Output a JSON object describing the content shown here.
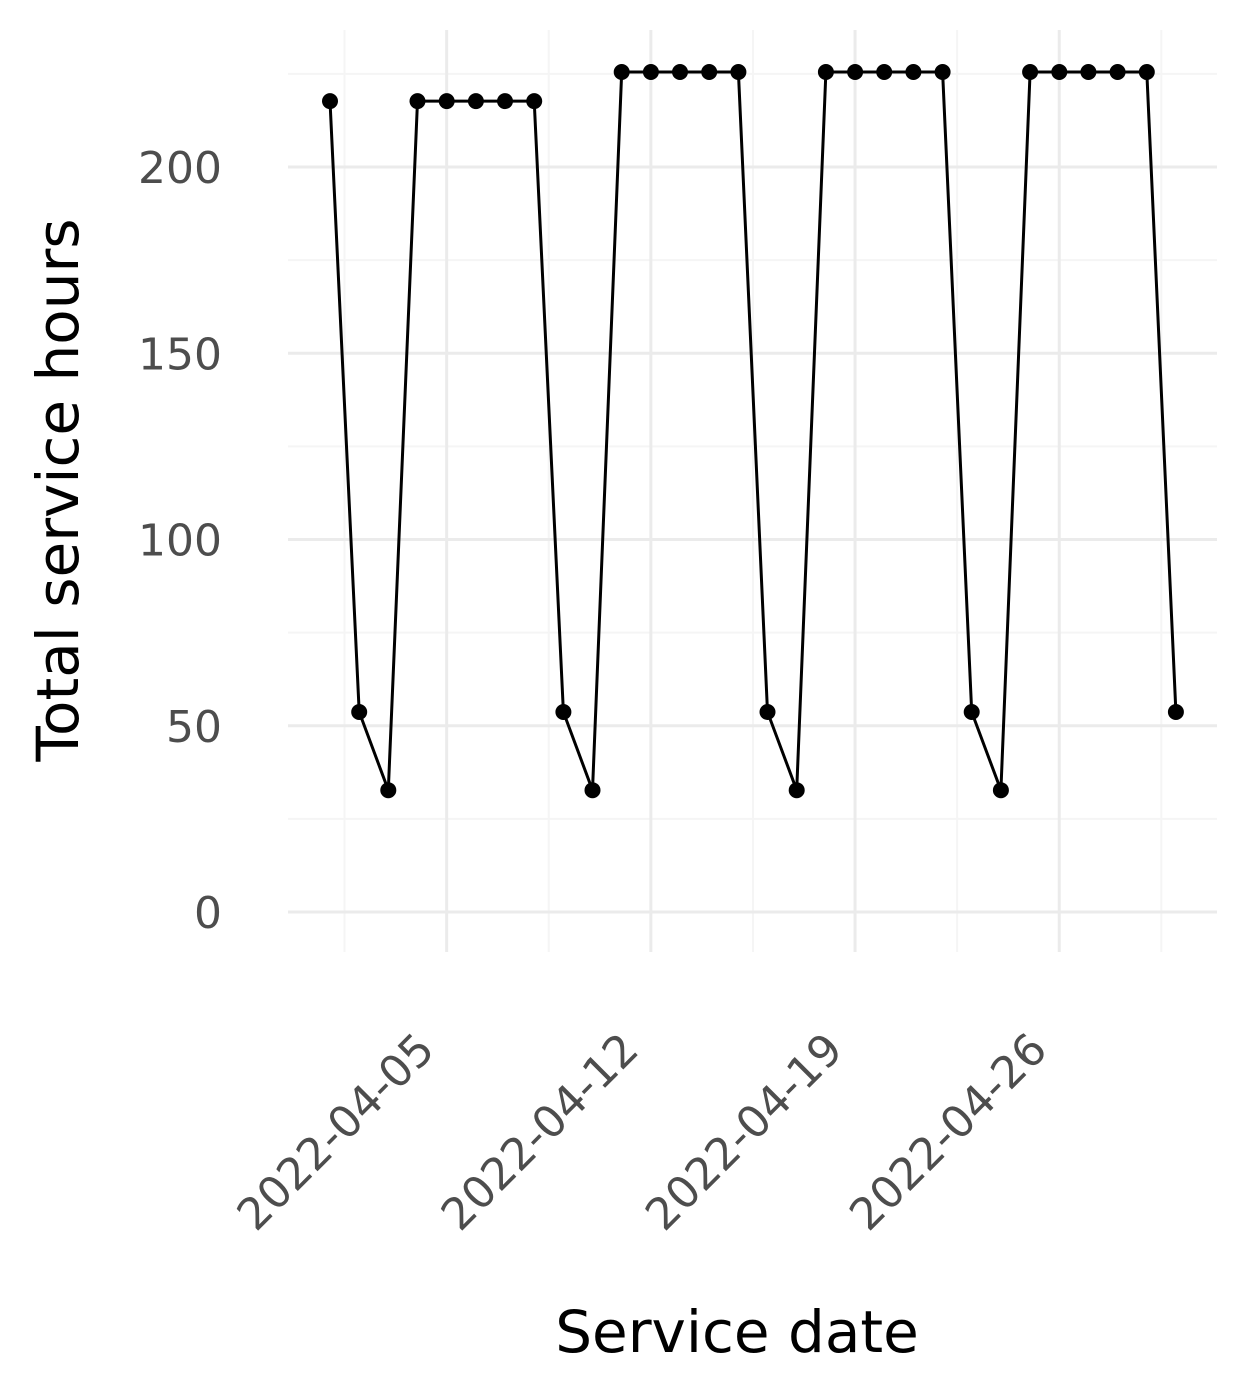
{
  "chart_data": {
    "type": "line",
    "title": "",
    "xlabel": "Service date",
    "ylabel": "Total service hours",
    "x_ticks": [
      "2022-04-05",
      "2022-04-12",
      "2022-04-19",
      "2022-04-26"
    ],
    "y_ticks": [
      0,
      50,
      100,
      150,
      200
    ],
    "ylim": [
      -11,
      226
    ],
    "xlim": [
      "2022-04-01",
      "2022-05-02"
    ],
    "grid": true,
    "legend": "none",
    "colors": {
      "line": "#000000",
      "grid_major": "#ebebeb",
      "grid_minor": "#f5f5f5",
      "tick_text": "#4d4d4d"
    },
    "series": [
      {
        "x": [
          "2022-04-01",
          "2022-04-02",
          "2022-04-03",
          "2022-04-04",
          "2022-04-05",
          "2022-04-06",
          "2022-04-07",
          "2022-04-08",
          "2022-04-09",
          "2022-04-10",
          "2022-04-11",
          "2022-04-12",
          "2022-04-13",
          "2022-04-14",
          "2022-04-15",
          "2022-04-16",
          "2022-04-17",
          "2022-04-18",
          "2022-04-19",
          "2022-04-20",
          "2022-04-21",
          "2022-04-22",
          "2022-04-23",
          "2022-04-24",
          "2022-04-25",
          "2022-04-26",
          "2022-04-27",
          "2022-04-28",
          "2022-04-29",
          "2022-04-30"
        ],
        "y": [
          217.7,
          53.7,
          32.7,
          217.7,
          217.7,
          217.7,
          217.7,
          217.7,
          53.7,
          32.7,
          225.5,
          225.5,
          225.5,
          225.5,
          225.5,
          53.7,
          32.7,
          225.5,
          225.5,
          225.5,
          225.5,
          225.5,
          53.7,
          32.7,
          225.5,
          225.5,
          225.5,
          225.5,
          225.5,
          53.7
        ]
      }
    ]
  }
}
